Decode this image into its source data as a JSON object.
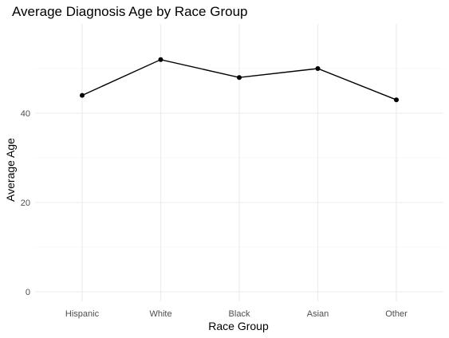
{
  "chart_data": {
    "type": "line",
    "title": "Average Diagnosis Age by Race Group",
    "xlabel": "Race Group",
    "ylabel": "Average Age",
    "categories": [
      "Hispanic",
      "White",
      "Black",
      "Asian",
      "Other"
    ],
    "series": [
      {
        "values": [
          44,
          52,
          48,
          50,
          43
        ]
      }
    ],
    "ylim": [
      0,
      56
    ],
    "yticks": [
      "0",
      "20",
      "40"
    ],
    "ytick_values": [
      0,
      20,
      40
    ],
    "yminor_values": [
      10,
      30,
      50
    ],
    "grid": true,
    "colors": {
      "line": "#000000",
      "point": "#000000",
      "grid": "#ebebeb"
    }
  }
}
